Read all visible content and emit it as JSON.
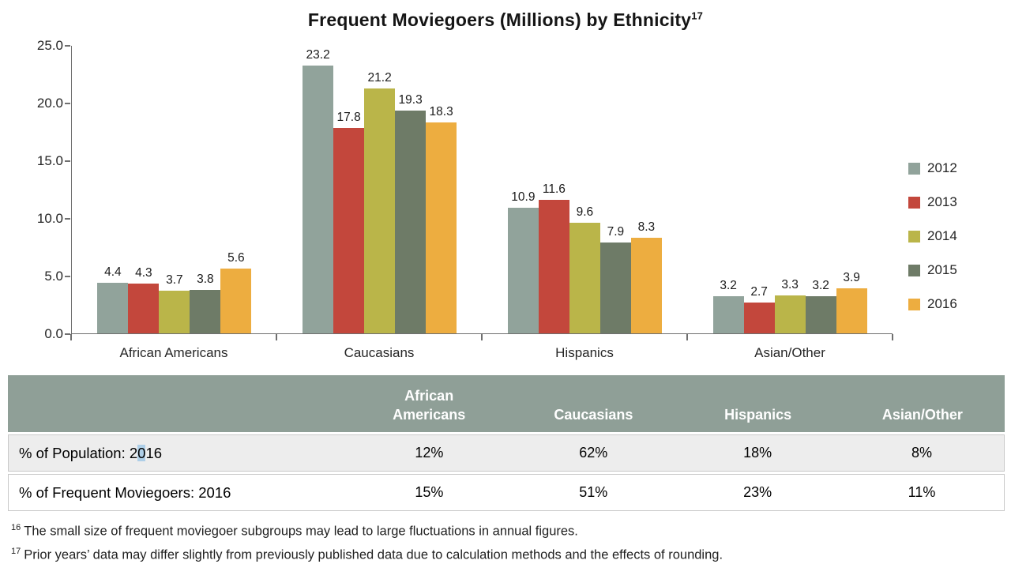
{
  "chart_data": {
    "type": "bar",
    "title": "Frequent Moviegoers (Millions) by Ethnicity",
    "title_sup": "17",
    "categories": [
      "African Americans",
      "Caucasians",
      "Hispanics",
      "Asian/Other"
    ],
    "series": [
      {
        "name": "2012",
        "color": "#91A39B",
        "values": [
          4.4,
          23.2,
          10.9,
          3.2
        ]
      },
      {
        "name": "2013",
        "color": "#C3473C",
        "values": [
          4.3,
          17.8,
          11.6,
          2.7
        ]
      },
      {
        "name": "2014",
        "color": "#BAB549",
        "values": [
          3.7,
          21.2,
          9.6,
          3.3
        ]
      },
      {
        "name": "2015",
        "color": "#6E7B67",
        "values": [
          3.8,
          19.3,
          7.9,
          3.2
        ]
      },
      {
        "name": "2016",
        "color": "#EDAD40",
        "values": [
          5.6,
          18.3,
          8.3,
          3.9
        ]
      }
    ],
    "ylim": [
      0,
      25
    ],
    "yticks": [
      25,
      20,
      15,
      10,
      5,
      0
    ],
    "value_label_decimals": 1,
    "grid": false,
    "legend_position": "right"
  },
  "table": {
    "header_bg": "#8F9F97",
    "row_odd_bg": "#EDEDED",
    "row_even_bg": "#FFFFFF",
    "headers": [
      "",
      "African Americans",
      "Caucasians",
      "Hispanics",
      "Asian/Other"
    ],
    "rows": [
      {
        "label": "% of Population: 2016",
        "selection": {
          "start": 18,
          "length": 1
        },
        "values": [
          "12%",
          "62%",
          "18%",
          "8%"
        ]
      },
      {
        "label": "% of Frequent Moviegoers: 2016",
        "values": [
          "15%",
          "51%",
          "23%",
          "11%"
        ]
      }
    ]
  },
  "footnotes": [
    {
      "sup": "16",
      "text": "The small size of frequent moviegoer subgroups may lead to large fluctuations in annual figures."
    },
    {
      "sup": "17",
      "text": "Prior years’ data may differ slightly from previously published data due to calculation methods and the effects of rounding."
    }
  ]
}
